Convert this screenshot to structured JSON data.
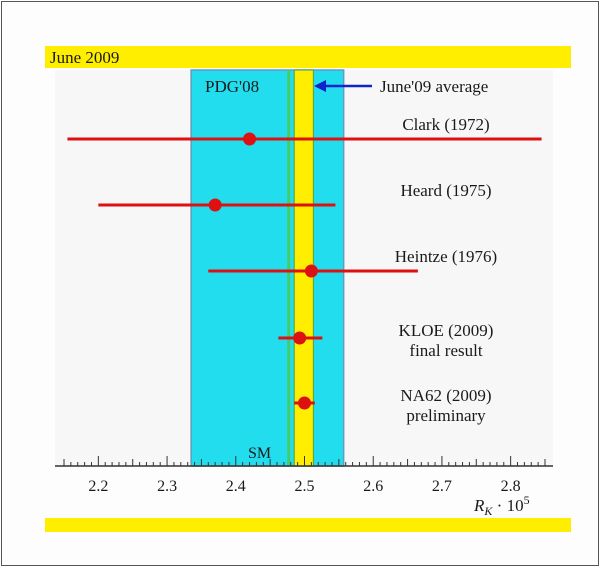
{
  "banner": {
    "top_label": "June 2009"
  },
  "chart_data": {
    "type": "scatter",
    "title": "",
    "xlabel_symbol": "R",
    "xlabel_sub": "K",
    "xlabel_rest": " · 10",
    "xlabel_sup": "5",
    "xlim": [
      2.15,
      2.85
    ],
    "x_ticks": [
      "2.2",
      "2.3",
      "2.4",
      "2.5",
      "2.6",
      "2.7",
      "2.8"
    ],
    "x_tick_values": [
      2.2,
      2.3,
      2.4,
      2.5,
      2.6,
      2.7,
      2.8
    ],
    "bands": [
      {
        "name": "PDG'08",
        "from": 2.335,
        "to": 2.557,
        "color": "#22ddee"
      },
      {
        "name": "June'09 average",
        "from": 2.485,
        "to": 2.513,
        "color": "#ffee00"
      }
    ],
    "sm_line": {
      "name": "SM",
      "value": 2.477,
      "color": "#44cc66"
    },
    "measurements": [
      {
        "name": "Clark (1972)",
        "name2": "",
        "value": 2.42,
        "err_lo": 2.155,
        "err_hi": 2.845
      },
      {
        "name": "Heard (1975)",
        "name2": "",
        "value": 2.37,
        "err_lo": 2.2,
        "err_hi": 2.545
      },
      {
        "name": "Heintze (1976)",
        "name2": "",
        "value": 2.51,
        "err_lo": 2.36,
        "err_hi": 2.665
      },
      {
        "name": "KLOE (2009)",
        "name2": "final result",
        "value": 2.493,
        "err_lo": 2.462,
        "err_hi": 2.526
      },
      {
        "name": "NA62 (2009)",
        "name2": "preliminary",
        "value": 2.5,
        "err_lo": 2.485,
        "err_hi": 2.515
      }
    ],
    "colors": {
      "points": "#dd1111",
      "axis": "#333333",
      "arrow": "#1122cc",
      "band_edge": "#6699bb"
    }
  }
}
